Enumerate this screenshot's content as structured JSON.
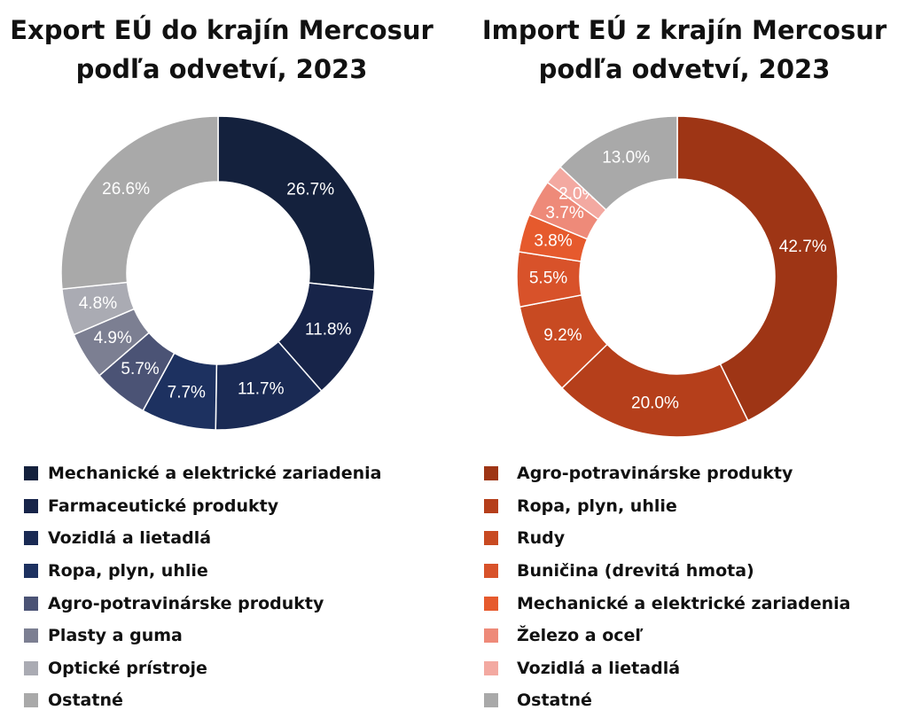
{
  "chart_data": [
    {
      "type": "pie",
      "title": "Export EÚ do krajín Mercosur podľa odvetví, 2023",
      "categories": [
        "Mechanické a elektrické zariadenia",
        "Farmaceutické produkty",
        "Vozidlá a lietadlá",
        "Ropa, plyn, uhlie",
        "Agro-potravinárske produkty",
        "Plasty a guma",
        "Optické prístroje",
        "Ostatné"
      ],
      "values": [
        26.7,
        11.8,
        11.7,
        7.7,
        5.7,
        4.9,
        4.8,
        26.6
      ],
      "labels": [
        "26.7%",
        "11.8%",
        "11.7%",
        "7.7%",
        "5.7%",
        "4.9%",
        "4.8%",
        "26.6%"
      ],
      "colors": [
        "#14213d",
        "#172449",
        "#1a2a54",
        "#1d3160",
        "#4b5375",
        "#7c7f92",
        "#aaabb3",
        "#a9a9a9"
      ],
      "donut": true,
      "legend": "bottom"
    },
    {
      "type": "pie",
      "title": "Import EÚ z krajín Mercosur podľa odvetví, 2023",
      "categories": [
        "Agro-potravinárske produkty",
        "Ropa, plyn, uhlie",
        "Rudy",
        "Buničina (drevitá hmota)",
        "Mechanické a elektrické zariadenia",
        "Železo a oceľ",
        "Vozidlá a lietadlá",
        "Ostatné"
      ],
      "values": [
        42.7,
        20.0,
        9.2,
        5.5,
        3.8,
        3.7,
        2.0,
        13.0
      ],
      "labels": [
        "42.7%",
        "20.0%",
        "9.2%",
        "5.5%",
        "3.8%",
        "3.7%",
        "2.0%",
        "13.0%"
      ],
      "colors": [
        "#9e3515",
        "#b53f1b",
        "#c84a22",
        "#d8522a",
        "#e65a2d",
        "#ee8a79",
        "#f3a9a1",
        "#a9a9a9"
      ],
      "donut": true,
      "legend": "bottom"
    }
  ]
}
